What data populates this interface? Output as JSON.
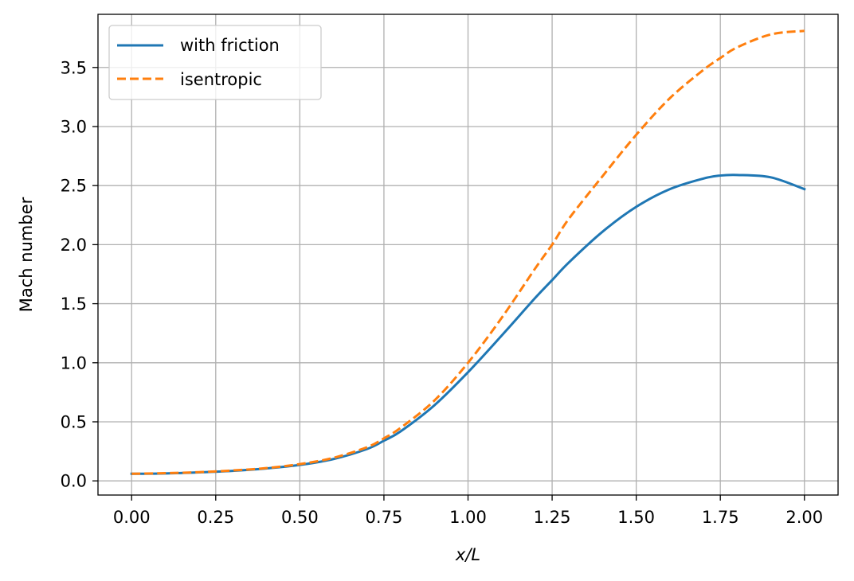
{
  "chart_data": {
    "type": "line",
    "title": "",
    "xlabel": "x/L",
    "ylabel": "Mach number",
    "xlim": [
      -0.1,
      2.1
    ],
    "ylim": [
      -0.12,
      3.95
    ],
    "grid": true,
    "legend_position": "top-left",
    "x_ticks": [
      0,
      0.25,
      0.5,
      0.75,
      1.0,
      1.25,
      1.5,
      1.75,
      2.0
    ],
    "x_tick_labels": [
      "0.00",
      "0.25",
      "0.50",
      "0.75",
      "1.00",
      "1.25",
      "1.50",
      "1.75",
      "2.00"
    ],
    "y_ticks": [
      0,
      0.5,
      1.0,
      1.5,
      2.0,
      2.5,
      3.0,
      3.5
    ],
    "y_tick_labels": [
      "0.0",
      "0.5",
      "1.0",
      "1.5",
      "2.0",
      "2.5",
      "3.0",
      "3.5"
    ],
    "x": [
      0,
      0.1,
      0.2,
      0.3,
      0.4,
      0.5,
      0.6,
      0.7,
      0.75,
      0.8,
      0.9,
      1.0,
      1.1,
      1.2,
      1.25,
      1.3,
      1.4,
      1.5,
      1.6,
      1.7,
      1.75,
      1.8,
      1.9,
      2.0
    ],
    "series": [
      {
        "name": "with friction",
        "color": "#1f77b4",
        "dash": "solid",
        "values": [
          0.06,
          0.063,
          0.072,
          0.085,
          0.105,
          0.135,
          0.185,
          0.27,
          0.34,
          0.42,
          0.64,
          0.92,
          1.23,
          1.55,
          1.7,
          1.85,
          2.11,
          2.32,
          2.47,
          2.56,
          2.585,
          2.59,
          2.57,
          2.47
        ]
      },
      {
        "name": "isentropic",
        "color": "#ff7f0e",
        "dash": "dashed",
        "values": [
          0.06,
          0.065,
          0.074,
          0.088,
          0.108,
          0.142,
          0.195,
          0.285,
          0.36,
          0.45,
          0.68,
          1.0,
          1.38,
          1.8,
          2.0,
          2.22,
          2.58,
          2.93,
          3.24,
          3.48,
          3.58,
          3.67,
          3.78,
          3.81
        ]
      }
    ]
  }
}
